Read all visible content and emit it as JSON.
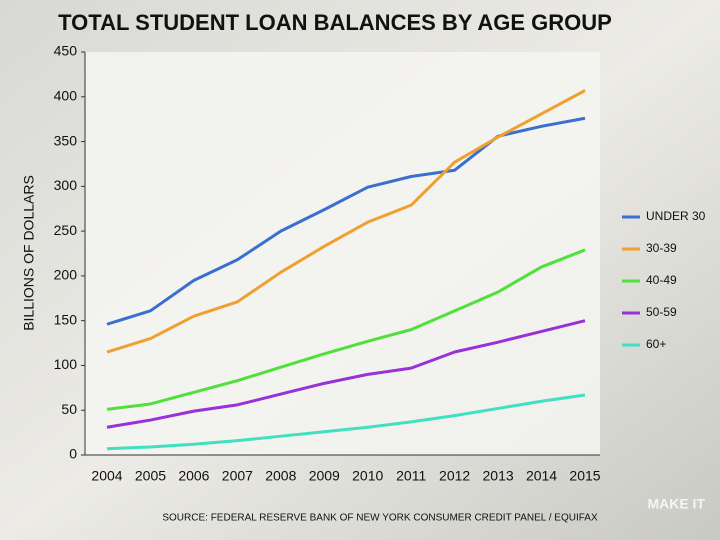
{
  "chart_data": {
    "type": "line",
    "title": "TOTAL STUDENT LOAN BALANCES BY AGE GROUP",
    "y_label": "BILLIONS OF DOLLARS",
    "source": "SOURCE: FEDERAL RESERVE BANK OF NEW YORK CONSUMER CREDIT PANEL / EQUIFAX",
    "brand": "MAKE IT",
    "categories": [
      "2004",
      "2005",
      "2006",
      "2007",
      "2008",
      "2009",
      "2010",
      "2011",
      "2012",
      "2013",
      "2014",
      "2015"
    ],
    "series": [
      {
        "name": "UNDER 30",
        "color": "#3a6fd0",
        "values": [
          146,
          161,
          195,
          218,
          250,
          274,
          299,
          311,
          318,
          356,
          367,
          376
        ]
      },
      {
        "name": "30-39",
        "color": "#f0a030",
        "values": [
          115,
          130,
          155,
          171,
          204,
          233,
          260,
          279,
          327,
          355,
          381,
          407
        ]
      },
      {
        "name": "40-49",
        "color": "#4fe03a",
        "values": [
          51,
          57,
          70,
          83,
          98,
          113,
          127,
          140,
          161,
          182,
          210,
          229
        ]
      },
      {
        "name": "50-59",
        "color": "#9a30d8",
        "values": [
          31,
          39,
          49,
          56,
          68,
          80,
          90,
          97,
          115,
          126,
          138,
          150
        ]
      },
      {
        "name": "60+",
        "color": "#40e0c0",
        "values": [
          7,
          9,
          12,
          16,
          21,
          26,
          31,
          37,
          44,
          52,
          60,
          67
        ]
      }
    ],
    "ylim": [
      0,
      450
    ],
    "yticks": [
      0,
      50,
      100,
      150,
      200,
      250,
      300,
      350,
      400,
      450
    ],
    "grid": false,
    "legend": "right"
  }
}
